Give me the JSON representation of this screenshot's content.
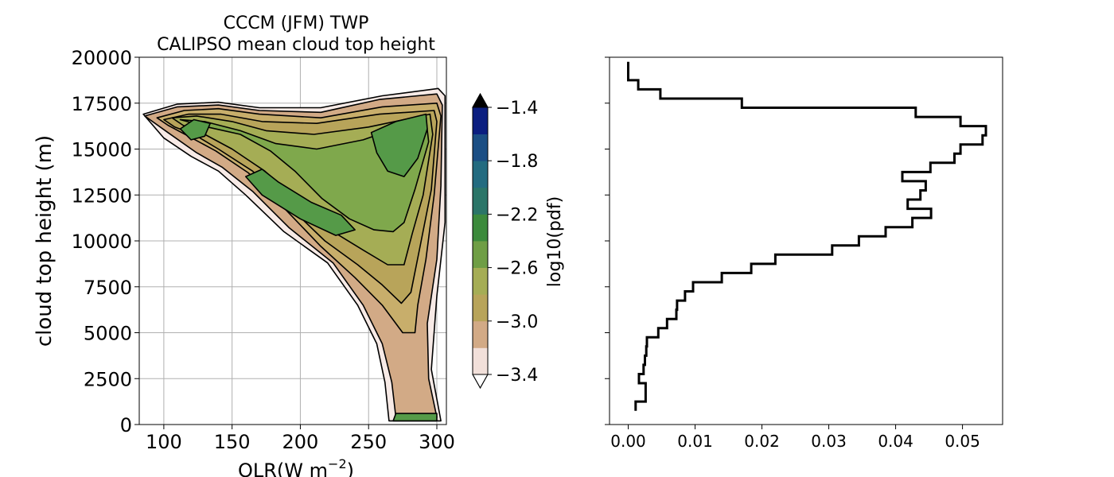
{
  "chart_data": [
    {
      "type": "contour",
      "title_lines": [
        "CCCM (JFM) TWP",
        "CALIPSO mean cloud top height"
      ],
      "xlabel": "OLR(W m",
      "xlabel_superscript": "−2",
      "xlabel_suffix": ")",
      "ylabel": "cloud top height (m)",
      "xlim": [
        82,
        307
      ],
      "ylim": [
        0,
        20000
      ],
      "xticks": [
        100,
        150,
        200,
        250,
        300
      ],
      "yticks": [
        0,
        2500,
        5000,
        7500,
        10000,
        12500,
        15000,
        17500,
        20000
      ],
      "grid": true,
      "colorbar": {
        "label": "log10(pdf)",
        "levels": [
          -3.4,
          -3.2,
          -3.0,
          -2.8,
          -2.6,
          -2.4,
          -2.2,
          -2.0,
          -1.8,
          -1.6,
          -1.4
        ],
        "ticks": [
          -3.4,
          -3.0,
          -2.6,
          -2.2,
          -1.8,
          -1.4
        ],
        "tick_labels": [
          "−3.4",
          "−3.0",
          "−2.6",
          "−2.2",
          "−1.8",
          "−1.4"
        ],
        "colors": [
          "#f2e0da",
          "#d2aa86",
          "#b8a45a",
          "#a5ad55",
          "#6f9e45",
          "#3c8a3c",
          "#2b7568",
          "#236b80",
          "#1b4e84",
          "#0b1e80"
        ],
        "extend": "both"
      },
      "contour_data": {
        "note_units": "OLR in W m-2, height in m; each contour is a closed polygon at a log10(pdf) level",
        "contours": [
          {
            "level": -3.6,
            "color": "#f7eae6",
            "points": [
              [
                85,
                16900
              ],
              [
                110,
                17450
              ],
              [
                140,
                17550
              ],
              [
                170,
                17250
              ],
              [
                215,
                17250
              ],
              [
                260,
                17900
              ],
              [
                301,
                18300
              ],
              [
                306,
                17900
              ],
              [
                306,
                11000
              ],
              [
                300,
                7000
              ],
              [
                296,
                3000
              ],
              [
                303,
                200
              ],
              [
                265,
                200
              ],
              [
                262,
                2300
              ],
              [
                256,
                4400
              ],
              [
                242,
                6500
              ],
              [
                220,
                8800
              ],
              [
                188,
                10500
              ],
              [
                160,
                12500
              ],
              [
                140,
                13800
              ],
              [
                120,
                14600
              ],
              [
                100,
                15600
              ]
            ]
          },
          {
            "level": -3.4,
            "color": "#d2aa86",
            "points": [
              [
                86,
                16800
              ],
              [
                110,
                17300
              ],
              [
                140,
                17400
              ],
              [
                170,
                17100
              ],
              [
                215,
                17000
              ],
              [
                258,
                17700
              ],
              [
                300,
                18000
              ],
              [
                304,
                17400
              ],
              [
                303,
                13000
              ],
              [
                300,
                9000
              ],
              [
                293,
                5500
              ],
              [
                294,
                2500
              ],
              [
                300,
                400
              ],
              [
                270,
                400
              ],
              [
                267,
                2300
              ],
              [
                260,
                4400
              ],
              [
                246,
                6500
              ],
              [
                224,
                8800
              ],
              [
                192,
                10700
              ],
              [
                165,
                12700
              ],
              [
                143,
                14000
              ],
              [
                124,
                14800
              ],
              [
                103,
                15900
              ]
            ]
          },
          {
            "level": -3.2,
            "color": "#c8ae6b",
            "points": [
              [
                95,
                16700
              ],
              [
                115,
                17100
              ],
              [
                140,
                17200
              ],
              [
                170,
                16900
              ],
              [
                215,
                16700
              ],
              [
                260,
                17300
              ],
              [
                300,
                17500
              ],
              [
                303,
                16800
              ],
              [
                298,
                12500
              ],
              [
                292,
                9000
              ],
              [
                286,
                6500
              ],
              [
                284,
                5000
              ],
              [
                275,
                5000
              ],
              [
                260,
                6500
              ],
              [
                240,
                8000
              ],
              [
                215,
                9700
              ],
              [
                188,
                11800
              ],
              [
                162,
                13700
              ],
              [
                138,
                14900
              ],
              [
                118,
                15700
              ],
              [
                103,
                16300
              ]
            ]
          },
          {
            "level": -3.0,
            "color": "#b8a45a",
            "points": [
              [
                100,
                16600
              ],
              [
                118,
                16900
              ],
              [
                142,
                16900
              ],
              [
                172,
                16500
              ],
              [
                212,
                16400
              ],
              [
                258,
                16900
              ],
              [
                298,
                17100
              ],
              [
                300,
                16500
              ],
              [
                296,
                12800
              ],
              [
                288,
                9800
              ],
              [
                281,
                7200
              ],
              [
                274,
                6600
              ],
              [
                260,
                7600
              ],
              [
                242,
                8700
              ],
              [
                218,
                10000
              ],
              [
                190,
                12000
              ],
              [
                165,
                13800
              ],
              [
                140,
                15000
              ],
              [
                122,
                15800
              ],
              [
                108,
                16200
              ]
            ]
          },
          {
            "level": -2.8,
            "color": "#a5ad55",
            "points": [
              [
                106,
                16700
              ],
              [
                124,
                16800
              ],
              [
                150,
                16500
              ],
              [
                175,
                16000
              ],
              [
                210,
                15800
              ],
              [
                250,
                16200
              ],
              [
                295,
                16900
              ],
              [
                297,
                15800
              ],
              [
                290,
                12500
              ],
              [
                282,
                10400
              ],
              [
                276,
                8700
              ],
              [
                264,
                8700
              ],
              [
                246,
                9500
              ],
              [
                224,
                10500
              ],
              [
                198,
                12200
              ],
              [
                174,
                13800
              ],
              [
                150,
                15000
              ],
              [
                130,
                15800
              ],
              [
                114,
                16300
              ]
            ]
          },
          {
            "level": -2.6,
            "color": "#7fa84c",
            "points": [
              [
                112,
                16600
              ],
              [
                130,
                16500
              ],
              [
                156,
                16000
              ],
              [
                182,
                15300
              ],
              [
                212,
                15000
              ],
              [
                246,
                15500
              ],
              [
                292,
                16700
              ],
              [
                294,
                15400
              ],
              [
                284,
                12800
              ],
              [
                276,
                11000
              ],
              [
                268,
                10500
              ],
              [
                254,
                10600
              ],
              [
                236,
                11200
              ],
              [
                216,
                12300
              ],
              [
                196,
                13800
              ],
              [
                178,
                14900
              ],
              [
                156,
                15800
              ],
              [
                132,
                16200
              ]
            ]
          },
          {
            "level": -2.4,
            "color": "#559a48",
            "points": [
              [
                160,
                13500
              ],
              [
                172,
                12500
              ],
              [
                200,
                11200
              ],
              [
                226,
                10300
              ],
              [
                240,
                10600
              ],
              [
                230,
                11400
              ],
              [
                208,
                12100
              ],
              [
                184,
                13200
              ],
              [
                172,
                13900
              ]
            ]
          },
          {
            "level": -2.4,
            "color": "#559a48",
            "points": [
              [
                252,
                15900
              ],
              [
                270,
                16500
              ],
              [
                292,
                16900
              ],
              [
                293,
                16100
              ],
              [
                286,
                14500
              ],
              [
                276,
                13500
              ],
              [
                264,
                13800
              ],
              [
                256,
                14800
              ]
            ]
          },
          {
            "level": -2.4,
            "color": "#559a48",
            "points": [
              [
                112,
                16100
              ],
              [
                122,
                16600
              ],
              [
                134,
                16400
              ],
              [
                130,
                15700
              ],
              [
                120,
                15500
              ]
            ]
          },
          {
            "level": -2.4,
            "color": "#559a48",
            "points": [
              [
                268,
                200
              ],
              [
                300,
                200
              ],
              [
                300,
                600
              ],
              [
                270,
                600
              ]
            ]
          }
        ]
      }
    },
    {
      "type": "step",
      "xlim": [
        -0.0028,
        0.056
      ],
      "ylim": [
        0,
        20000
      ],
      "xticks": [
        0.0,
        0.01,
        0.02,
        0.03,
        0.04,
        0.05
      ],
      "xtick_labels": [
        "0.00",
        "0.01",
        "0.02",
        "0.03",
        "0.04",
        "0.05"
      ],
      "yticks": [
        0,
        2500,
        5000,
        7500,
        10000,
        12500,
        15000,
        17500,
        20000
      ],
      "series": [
        {
          "line_color": "#000000",
          "bins_y": [
            19500,
            19000,
            18500,
            18000,
            17500,
            17000,
            16500,
            16000,
            15500,
            15000,
            14500,
            14000,
            13500,
            13000,
            12500,
            12000,
            11500,
            11000,
            10500,
            10000,
            9500,
            9000,
            8500,
            8000,
            7500,
            7000,
            6500,
            6000,
            5500,
            5000,
            4500,
            4000,
            3500,
            3000,
            2500,
            2000,
            1500,
            1000
          ],
          "bins_x": [
            0.0,
            0.0,
            0.0015,
            0.0048,
            0.017,
            0.043,
            0.0497,
            0.0535,
            0.053,
            0.0497,
            0.0488,
            0.0452,
            0.041,
            0.0445,
            0.0437,
            0.0418,
            0.0453,
            0.0425,
            0.0385,
            0.0345,
            0.0305,
            0.022,
            0.0184,
            0.014,
            0.0097,
            0.0085,
            0.0073,
            0.0072,
            0.0058,
            0.0045,
            0.0028,
            0.0027,
            0.0025,
            0.0023,
            0.0016,
            0.0026,
            0.0026,
            0.0011
          ]
        }
      ]
    }
  ]
}
